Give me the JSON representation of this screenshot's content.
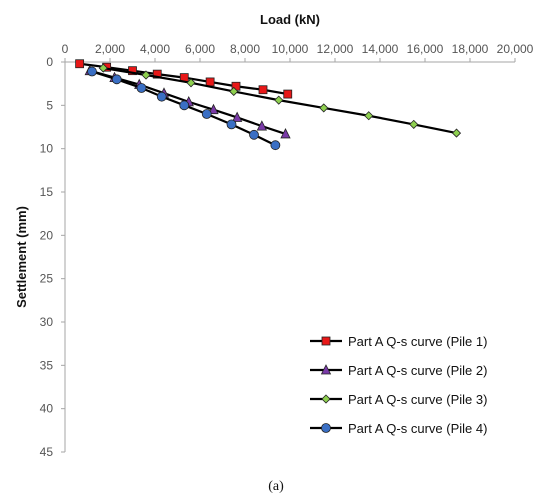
{
  "chart_data": {
    "type": "scatter",
    "xlabel": "Load (kN)",
    "ylabel": "Settlement (mm)",
    "xlim": [
      0,
      20000
    ],
    "ylim": [
      0,
      45
    ],
    "x_ticks": [
      0,
      2000,
      4000,
      6000,
      8000,
      10000,
      12000,
      14000,
      16000,
      18000,
      20000
    ],
    "x_tick_labels": [
      "0",
      "2,000",
      "4,000",
      "6,000",
      "8,000",
      "10,000",
      "12,000",
      "14,000",
      "16,000",
      "18,000",
      "20,000"
    ],
    "y_ticks": [
      0,
      5,
      10,
      15,
      20,
      25,
      30,
      35,
      40,
      45
    ],
    "y_tick_labels": [
      "0",
      "5",
      "10",
      "15",
      "20",
      "25",
      "30",
      "35",
      "40",
      "45"
    ],
    "x_axis_position": "top",
    "y_inverted": true,
    "grid": false,
    "legend_position": "bottom-right",
    "series": [
      {
        "name": "Part A Q-s curve (Pile 1)",
        "color": "#e81818",
        "marker": "square",
        "x": [
          650,
          1850,
          3000,
          4100,
          5300,
          6450,
          7600,
          8800,
          9900
        ],
        "y": [
          0.2,
          0.6,
          1.0,
          1.4,
          1.8,
          2.3,
          2.8,
          3.2,
          3.7
        ]
      },
      {
        "name": "Part A Q-s curve (Pile 2)",
        "color": "#7a3aa8",
        "marker": "triangle",
        "x": [
          1100,
          2200,
          3300,
          4400,
          5500,
          6600,
          7650,
          8750,
          9800
        ],
        "y": [
          1.0,
          1.8,
          2.6,
          3.6,
          4.6,
          5.5,
          6.4,
          7.4,
          8.3
        ]
      },
      {
        "name": "Part A Q-s curve (Pile 3)",
        "color": "#8ed04f",
        "marker": "diamond",
        "x": [
          1700,
          3600,
          5600,
          7500,
          9500,
          11500,
          13500,
          15500,
          17400
        ],
        "y": [
          0.7,
          1.5,
          2.4,
          3.4,
          4.4,
          5.3,
          6.2,
          7.2,
          8.2
        ]
      },
      {
        "name": "Part A Q-s curve (Pile 4)",
        "color": "#3a6fc4",
        "marker": "circle",
        "x": [
          1200,
          2300,
          3400,
          4300,
          5300,
          6300,
          7400,
          8400,
          9350
        ],
        "y": [
          1.1,
          2.0,
          3.0,
          4.0,
          5.0,
          6.0,
          7.2,
          8.4,
          9.6
        ]
      }
    ]
  },
  "caption": "(a)"
}
